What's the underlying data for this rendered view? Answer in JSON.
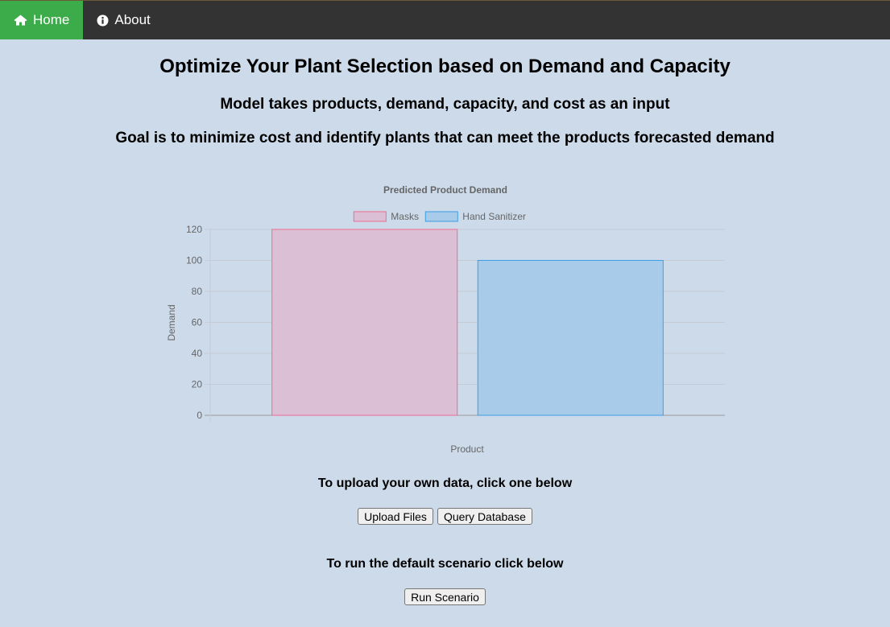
{
  "nav": {
    "home_label": "Home",
    "home_icon": "home-icon",
    "about_label": "About",
    "about_icon": "info-circle-icon",
    "active_color": "#3cab4a",
    "bar_color": "#333333"
  },
  "headings": {
    "title": "Optimize Your Plant Selection based on Demand and Capacity",
    "subtitle": "Model takes products, demand, capacity, and cost as an input",
    "goal": "Goal is to minimize cost and identify plants that can meet the products forecasted demand"
  },
  "chart_data": {
    "type": "bar",
    "title": "Predicted Product Demand",
    "xlabel": "Product",
    "ylabel": "Demand",
    "ylim": [
      0,
      120
    ],
    "yticks": [
      0,
      20,
      40,
      60,
      80,
      100,
      120
    ],
    "grid": true,
    "legend_position": "top",
    "series": [
      {
        "name": "Masks",
        "values": [
          120
        ],
        "fill": "#dabfd5",
        "stroke": "#ee6c91"
      },
      {
        "name": "Hand Sanitizer",
        "values": [
          100
        ],
        "fill": "#a9cbea",
        "stroke": "#3d9ee4"
      }
    ]
  },
  "upload": {
    "label": "To upload your own data, click one below",
    "upload_button": "Upload Files",
    "query_button": "Query Database"
  },
  "run": {
    "label": "To run the default scenario click below",
    "run_button": "Run Scenario"
  }
}
